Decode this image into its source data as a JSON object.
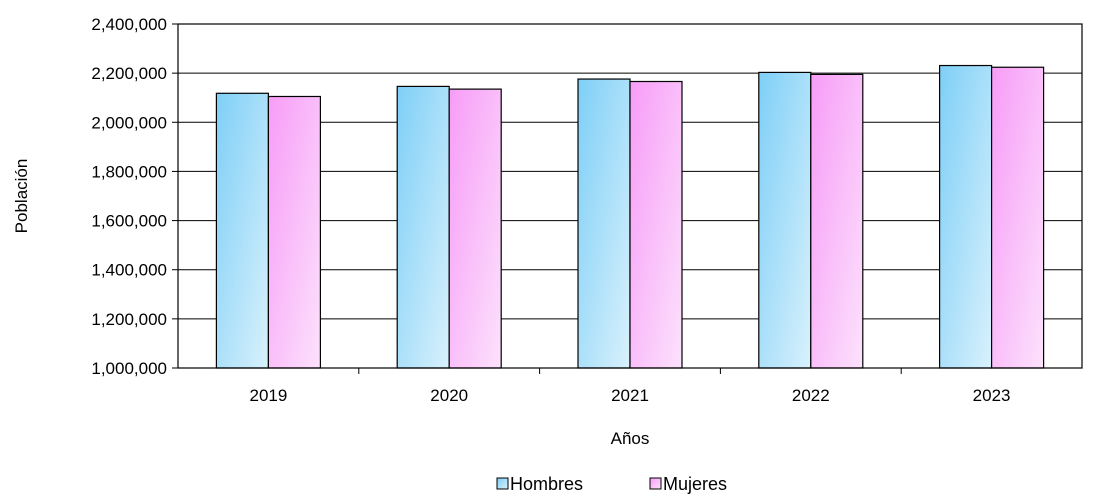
{
  "chart_data": {
    "type": "bar",
    "title": "",
    "xlabel": "Años",
    "ylabel": "Población",
    "categories": [
      "2019",
      "2020",
      "2021",
      "2022",
      "2023"
    ],
    "series": [
      {
        "name": "Hombres",
        "values": [
          2118000,
          2146000,
          2176000,
          2203000,
          2231000
        ],
        "color_start": "#7ecff7",
        "color_end": "#d9f1fc"
      },
      {
        "name": "Mujeres",
        "values": [
          2105000,
          2135000,
          2166000,
          2195000,
          2224000
        ],
        "color_start": "#f79cf7",
        "color_end": "#fce2fc"
      }
    ],
    "ylim": [
      1000000,
      2400000
    ],
    "yticks": [
      1000000,
      1200000,
      1400000,
      1600000,
      1800000,
      2000000,
      2200000,
      2400000
    ],
    "ytick_labels": [
      "1,000,000",
      "1,200,000",
      "1,400,000",
      "1,600,000",
      "1,800,000",
      "2,000,000",
      "2,200,000",
      "2,400,000"
    ],
    "grid": true,
    "legend_position": "bottom"
  }
}
